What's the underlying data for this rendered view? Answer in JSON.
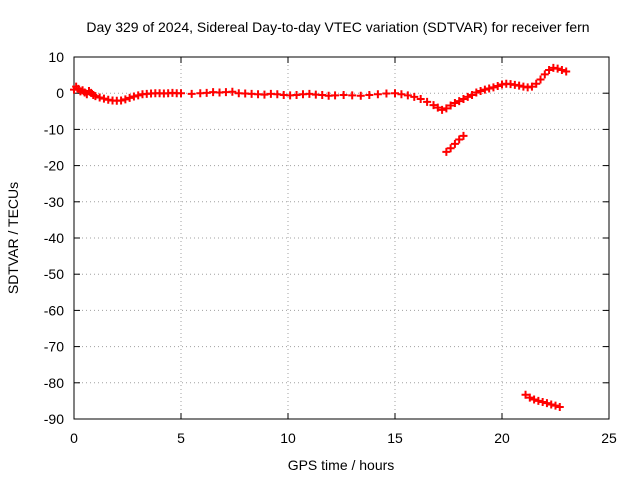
{
  "chart_data": {
    "type": "scatter",
    "title": "Day 329 of 2024, Sidereal Day-to-day VTEC variation (SDTVAR) for receiver fern",
    "xlabel": "GPS time / hours",
    "ylabel": "SDTVAR / TECUs",
    "xlim": [
      0,
      25
    ],
    "ylim": [
      -90,
      10
    ],
    "xticks": [
      0,
      5,
      10,
      15,
      20,
      25
    ],
    "xtick_labels": [
      "0",
      "5",
      "10",
      "15",
      "20",
      "25"
    ],
    "yticks": [
      10,
      0,
      -10,
      -20,
      -30,
      -40,
      -50,
      -60,
      -70,
      -80,
      -90
    ],
    "ytick_labels": [
      "10",
      "0",
      "-10",
      "-20",
      "-30",
      "-40",
      "-50",
      "-60",
      "-70",
      "-80",
      "-90"
    ],
    "grid": true,
    "marker": "plus",
    "color": "#ff0000",
    "series": [
      {
        "name": "main",
        "x": [
          0.0,
          0.1,
          0.2,
          0.3,
          0.4,
          0.5,
          0.6,
          0.7,
          0.8,
          0.9,
          1.0,
          1.2,
          1.4,
          1.6,
          1.8,
          2.0,
          2.2,
          2.4,
          2.6,
          2.8,
          3.0,
          3.2,
          3.4,
          3.6,
          3.8,
          4.0,
          4.2,
          4.4,
          4.6,
          4.8,
          5.0,
          5.5,
          5.9,
          6.2,
          6.5,
          6.8,
          7.1,
          7.4,
          7.7,
          8.0,
          8.3,
          8.6,
          8.9,
          9.2,
          9.5,
          9.8,
          10.1,
          10.4,
          10.7,
          11.0,
          11.3,
          11.6,
          11.9,
          12.2,
          12.6,
          13.0,
          13.4,
          13.8,
          14.2,
          14.6,
          15.0,
          15.3,
          15.6,
          15.9,
          16.2,
          16.5,
          16.8,
          17.0,
          17.2,
          17.4,
          17.6,
          17.8,
          18.0,
          18.2,
          18.4,
          18.6,
          18.8,
          19.0,
          19.2,
          19.4,
          19.6,
          19.8,
          20.0,
          20.2,
          20.4,
          20.6,
          20.8,
          21.0,
          21.2,
          21.4,
          21.6,
          21.8,
          22.0,
          22.2,
          22.4,
          22.6,
          22.8,
          23.0
        ],
        "y": [
          1.0,
          1.8,
          1.2,
          0.5,
          0.8,
          0.2,
          -0.3,
          0.6,
          0.1,
          -0.5,
          -0.8,
          -1.2,
          -1.5,
          -1.8,
          -2.0,
          -2.1,
          -2.0,
          -1.7,
          -1.3,
          -0.9,
          -0.6,
          -0.3,
          -0.2,
          -0.1,
          0.0,
          0.0,
          -0.1,
          0.0,
          0.1,
          0.0,
          0.0,
          -0.2,
          0.0,
          0.1,
          0.3,
          0.2,
          0.3,
          0.4,
          0.0,
          -0.1,
          -0.2,
          -0.3,
          -0.4,
          -0.2,
          -0.3,
          -0.5,
          -0.6,
          -0.5,
          -0.3,
          -0.2,
          -0.4,
          -0.5,
          -0.7,
          -0.6,
          -0.5,
          -0.6,
          -0.7,
          -0.5,
          -0.3,
          -0.1,
          0.0,
          -0.3,
          -0.6,
          -1.0,
          -1.6,
          -2.4,
          -3.3,
          -4.0,
          -4.6,
          -4.2,
          -3.4,
          -2.7,
          -2.2,
          -1.6,
          -1.0,
          -0.5,
          0.2,
          0.6,
          1.0,
          1.3,
          1.6,
          2.0,
          2.4,
          2.6,
          2.5,
          2.3,
          2.1,
          1.8,
          1.6,
          1.8,
          2.6,
          3.8,
          5.2,
          6.4,
          7.0,
          6.8,
          6.4,
          6.0
        ]
      },
      {
        "name": "segment_b",
        "x": [
          17.4,
          17.6,
          17.8,
          18.0,
          18.2
        ],
        "y": [
          -16.2,
          -15.2,
          -14.0,
          -12.8,
          -11.8
        ]
      },
      {
        "name": "segment_c",
        "x": [
          21.1,
          21.3,
          21.5,
          21.7,
          21.9,
          22.1,
          22.3,
          22.5,
          22.7
        ],
        "y": [
          -83.3,
          -84.1,
          -84.6,
          -85.0,
          -85.3,
          -85.6,
          -86.0,
          -86.3,
          -86.7
        ]
      }
    ]
  }
}
